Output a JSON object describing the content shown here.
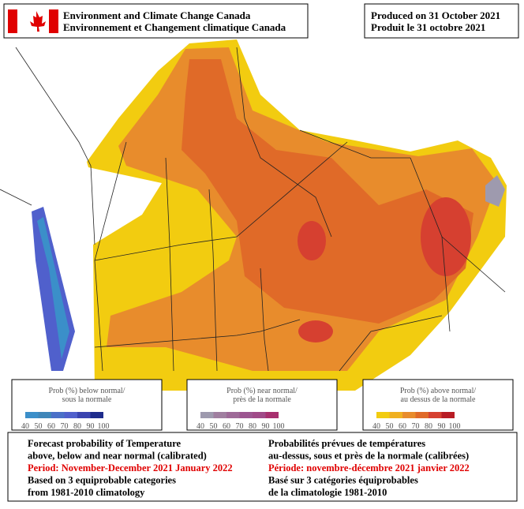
{
  "header": {
    "org_en": "Environment and Climate Change Canada",
    "org_fr": "Environnement et Changement climatique Canada",
    "produced_en": "Produced on 31 October 2021",
    "produced_fr": "Produit le 31 octobre 2021"
  },
  "legends": [
    {
      "title": "Prob (%) below normal/",
      "subtitle": "sous la normale",
      "colors": [
        "#3b8fc9",
        "#3f86b9",
        "#4a70c8",
        "#5060cc",
        "#3a44b0",
        "#1e2c8c"
      ],
      "labels": [
        40,
        50,
        60,
        70,
        80,
        90,
        100
      ]
    },
    {
      "title": "Prob (%) near normal/",
      "subtitle": "près de la normale",
      "colors": [
        "#9e9aae",
        "#a07fa0",
        "#9e6a98",
        "#9c5590",
        "#a04a88",
        "#a8306f"
      ],
      "labels": [
        40,
        50,
        60,
        70,
        80,
        90,
        100
      ]
    },
    {
      "title": "Prob (%) above normal/",
      "subtitle": "au dessus de la normale",
      "colors": [
        "#f2cc10",
        "#f0b020",
        "#e88c2c",
        "#e06a28",
        "#d64030",
        "#b81c24"
      ],
      "labels": [
        40,
        50,
        60,
        70,
        80,
        90,
        100
      ]
    }
  ],
  "footer": {
    "left": [
      "Forecast probability of Temperature",
      "above, below and near normal (calibrated)",
      "Period: November-December 2021 January 2022",
      "Based on 3 equiprobable categories",
      " from 1981-2010 climatology"
    ],
    "right": [
      "Probabilités prévues de températures",
      "au-dessus, sous et près de la normale (calibrées)",
      "Période: novembre-décembre 2021 janvier 2022",
      "Basé sur 3 catégories équiprobables",
      "de la climatologie 1981-2010"
    ]
  }
}
